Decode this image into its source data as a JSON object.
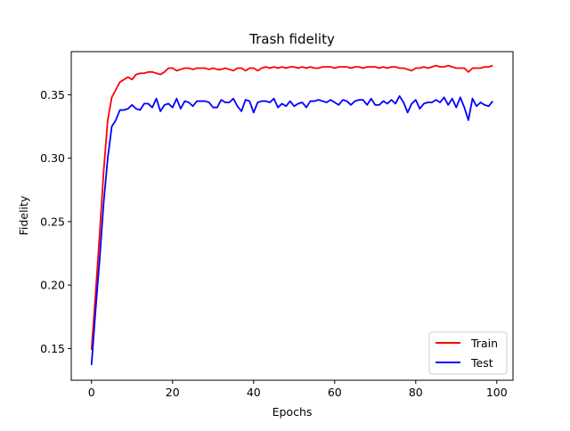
{
  "chart_data": {
    "type": "line",
    "title": "Trash fidelity",
    "xlabel": "Epochs",
    "ylabel": "Fidelity",
    "xlim": [
      -5,
      104
    ],
    "ylim": [
      0.125,
      0.384
    ],
    "xticks": [
      0,
      20,
      40,
      60,
      80,
      100
    ],
    "xtick_labels": [
      "0",
      "20",
      "40",
      "60",
      "80",
      "100"
    ],
    "yticks": [
      0.15,
      0.2,
      0.25,
      0.3,
      0.35
    ],
    "ytick_labels": [
      "0.15",
      "0.20",
      "0.25",
      "0.30",
      "0.35"
    ],
    "grid": false,
    "legend_position": "lower-right",
    "series": [
      {
        "name": "Train",
        "color": "#ff0000",
        "values": [
          0.149,
          0.193,
          0.24,
          0.29,
          0.33,
          0.348,
          0.354,
          0.36,
          0.362,
          0.364,
          0.362,
          0.366,
          0.367,
          0.367,
          0.368,
          0.368,
          0.367,
          0.366,
          0.368,
          0.371,
          0.371,
          0.369,
          0.37,
          0.371,
          0.371,
          0.37,
          0.371,
          0.371,
          0.371,
          0.37,
          0.371,
          0.37,
          0.37,
          0.371,
          0.37,
          0.369,
          0.371,
          0.371,
          0.369,
          0.371,
          0.371,
          0.369,
          0.371,
          0.372,
          0.371,
          0.372,
          0.371,
          0.372,
          0.371,
          0.372,
          0.372,
          0.371,
          0.372,
          0.371,
          0.372,
          0.371,
          0.371,
          0.372,
          0.372,
          0.372,
          0.371,
          0.372,
          0.372,
          0.372,
          0.371,
          0.372,
          0.372,
          0.371,
          0.372,
          0.372,
          0.372,
          0.371,
          0.372,
          0.371,
          0.372,
          0.372,
          0.371,
          0.371,
          0.37,
          0.369,
          0.371,
          0.371,
          0.372,
          0.371,
          0.372,
          0.373,
          0.372,
          0.372,
          0.373,
          0.372,
          0.371,
          0.371,
          0.371,
          0.368,
          0.371,
          0.371,
          0.371,
          0.372,
          0.372,
          0.373
        ]
      },
      {
        "name": "Test",
        "color": "#0000ff",
        "values": [
          0.137,
          0.18,
          0.22,
          0.265,
          0.3,
          0.325,
          0.33,
          0.338,
          0.338,
          0.339,
          0.342,
          0.339,
          0.338,
          0.343,
          0.343,
          0.34,
          0.347,
          0.337,
          0.342,
          0.343,
          0.34,
          0.347,
          0.339,
          0.345,
          0.344,
          0.341,
          0.345,
          0.345,
          0.345,
          0.344,
          0.34,
          0.34,
          0.346,
          0.344,
          0.344,
          0.347,
          0.341,
          0.337,
          0.346,
          0.345,
          0.336,
          0.344,
          0.345,
          0.345,
          0.344,
          0.347,
          0.34,
          0.343,
          0.341,
          0.345,
          0.341,
          0.343,
          0.344,
          0.34,
          0.345,
          0.345,
          0.346,
          0.345,
          0.344,
          0.346,
          0.344,
          0.342,
          0.346,
          0.345,
          0.342,
          0.345,
          0.346,
          0.346,
          0.342,
          0.347,
          0.342,
          0.342,
          0.345,
          0.343,
          0.346,
          0.343,
          0.349,
          0.344,
          0.336,
          0.343,
          0.346,
          0.339,
          0.343,
          0.344,
          0.344,
          0.346,
          0.344,
          0.348,
          0.342,
          0.347,
          0.34,
          0.348,
          0.34,
          0.33,
          0.347,
          0.341,
          0.344,
          0.342,
          0.341,
          0.345
        ]
      }
    ]
  }
}
